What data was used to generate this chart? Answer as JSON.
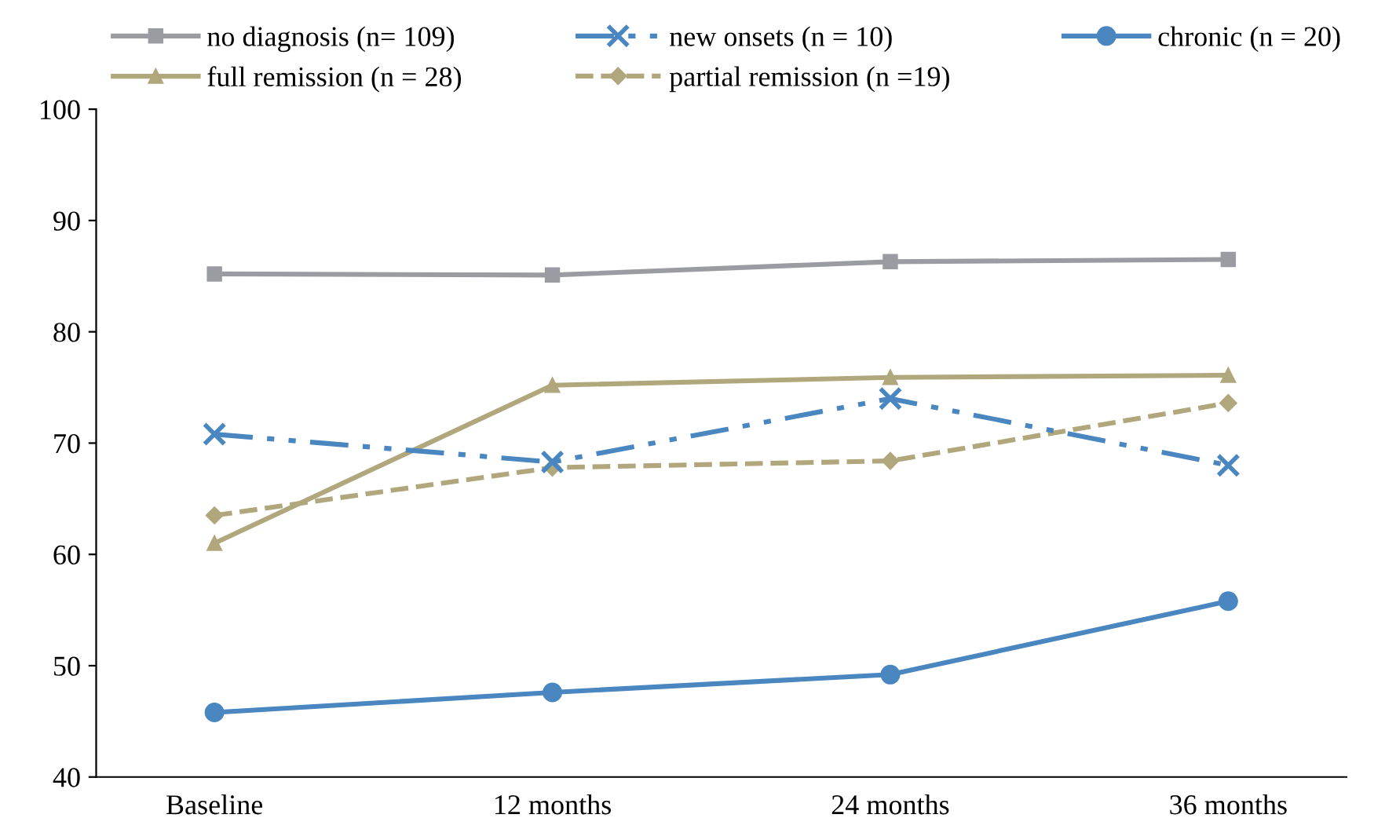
{
  "chart_data": {
    "type": "line",
    "categories": [
      "Baseline",
      "12 months",
      "24 months",
      "36 months"
    ],
    "series": [
      {
        "name": "no diagnosis (n= 109)",
        "color": "#9a9ca2",
        "marker": "square",
        "line_style": "solid",
        "values": [
          85.2,
          85.1,
          86.3,
          86.5
        ]
      },
      {
        "name": "full remission (n = 28)",
        "color": "#b0a77c",
        "marker": "triangle",
        "line_style": "solid",
        "values": [
          61.0,
          75.2,
          75.9,
          76.1
        ]
      },
      {
        "name": "new onsets (n = 10)",
        "color": "#4a86c0",
        "marker": "cross",
        "line_style": "dashdot",
        "values": [
          70.8,
          68.3,
          74.0,
          68.0
        ]
      },
      {
        "name": "partial remission (n =19)",
        "color": "#b0a77c",
        "marker": "diamond",
        "line_style": "dashed",
        "values": [
          63.5,
          67.8,
          68.4,
          73.6
        ]
      },
      {
        "name": "chronic (n = 20)",
        "color": "#4a86c0",
        "marker": "circle",
        "line_style": "solid",
        "values": [
          45.8,
          47.6,
          49.2,
          55.8
        ]
      }
    ],
    "ylim": [
      40,
      100
    ],
    "yticks": [
      40,
      50,
      60,
      70,
      80,
      90,
      100
    ],
    "grid": false,
    "legend": "top"
  }
}
